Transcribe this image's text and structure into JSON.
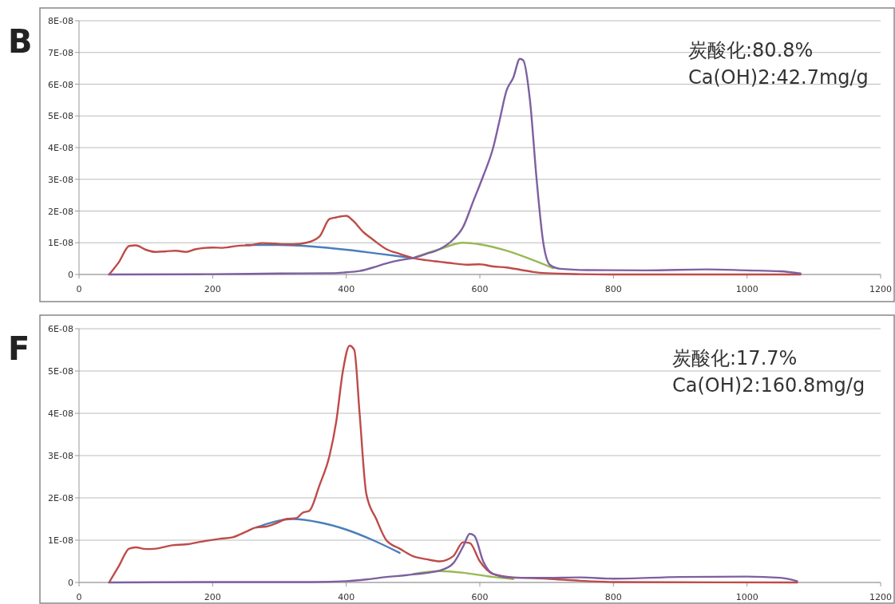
{
  "chart_data": [
    {
      "type": "line",
      "title": "B",
      "annotations": [
        "炭酸化:80.8%",
        "Ca(OH)2:42.7mg/g"
      ],
      "xlim": [
        0,
        1200
      ],
      "xticks": [
        0,
        200,
        400,
        600,
        800,
        1000,
        1200
      ],
      "ylim": [
        0,
        8e-08
      ],
      "yticks": [
        0,
        {
          "value": 1e-08,
          "label": "1E-08"
        },
        {
          "value": 2e-08,
          "label": "2E-08"
        },
        {
          "value": 3e-08,
          "label": "3E-08"
        },
        {
          "value": 4e-08,
          "label": "4E-08"
        },
        {
          "value": 5e-08,
          "label": "5E-08"
        },
        {
          "value": 6e-08,
          "label": "6E-08"
        },
        {
          "value": 7e-08,
          "label": "7E-08"
        },
        {
          "value": 8e-08,
          "label": "8E-08"
        }
      ],
      "grid": "y",
      "line_style": "solid",
      "marker": "none",
      "series": [
        {
          "color": "#4a7ebb",
          "x": [
            250,
            300,
            350,
            400,
            450,
            500
          ],
          "values": [
            9.3e-09,
            9.3e-09,
            8.8e-09,
            7.8e-09,
            6.5e-09,
            5.2e-09
          ]
        },
        {
          "color": "#98b954",
          "x": [
            500,
            540,
            575,
            600,
            640,
            680,
            710
          ],
          "values": [
            5.2e-09,
            8e-09,
            1e-08,
            9.5e-09,
            7.5e-09,
            4.5e-09,
            2e-09
          ]
        },
        {
          "color": "#be4b48",
          "x": [
            45,
            60,
            75,
            85,
            100,
            115,
            130,
            145,
            160,
            175,
            200,
            215,
            240,
            255,
            275,
            300,
            320,
            340,
            360,
            375,
            385,
            400,
            410,
            425,
            440,
            460,
            480,
            500,
            520,
            540,
            560,
            580,
            600,
            620,
            640,
            660,
            680,
            700,
            750,
            800,
            1080
          ],
          "values": [
            0,
            4e-09,
            9e-09,
            9.2e-09,
            7.8e-09,
            7.1e-09,
            7.3e-09,
            7.5e-09,
            7.1e-09,
            8e-09,
            8.5e-09,
            8.4e-09,
            9.1e-09,
            9.2e-09,
            9.9e-09,
            9.6e-09,
            9.5e-09,
            1e-08,
            1.2e-08,
            1.75e-08,
            1.8e-08,
            1.85e-08,
            1.7e-08,
            1.35e-08,
            1.1e-08,
            8e-09,
            6.5e-09,
            5.2e-09,
            4.5e-09,
            4e-09,
            3.5e-09,
            3.1e-09,
            3.2e-09,
            2.5e-09,
            2.2e-09,
            1.5e-09,
            8e-10,
            4e-10,
            1e-10,
            0,
            0
          ]
        },
        {
          "color": "#7d60a0",
          "x": [
            45,
            200,
            300,
            380,
            400,
            420,
            440,
            460,
            480,
            500,
            520,
            540,
            560,
            575,
            590,
            605,
            620,
            630,
            640,
            650,
            660,
            665,
            675,
            685,
            695,
            705,
            720,
            760,
            850,
            940,
            1000,
            1050,
            1080
          ],
          "values": [
            0,
            1e-10,
            3e-10,
            4e-10,
            7e-10,
            1.1e-09,
            2.2e-09,
            3.5e-09,
            4.5e-09,
            5.2e-09,
            6.5e-09,
            8e-09,
            1.1e-08,
            1.5e-08,
            2.3e-08,
            3.1e-08,
            4e-08,
            4.9e-08,
            5.8e-08,
            6.2e-08,
            6.8e-08,
            6.75e-08,
            5.5e-08,
            3e-08,
            1e-08,
            3e-09,
            1.8e-09,
            1.4e-09,
            1.3e-09,
            1.6e-09,
            1.3e-09,
            1e-09,
            3e-10
          ]
        }
      ]
    },
    {
      "type": "line",
      "title": "F",
      "annotations": [
        "炭酸化:17.7%",
        "Ca(OH)2:160.8mg/g"
      ],
      "xlim": [
        0,
        1200
      ],
      "xticks": [
        0,
        200,
        400,
        600,
        800,
        1000,
        1200
      ],
      "ylim": [
        0,
        6e-08
      ],
      "yticks": [
        0,
        {
          "value": 1e-08,
          "label": "1E-08"
        },
        {
          "value": 2e-08,
          "label": "2E-08"
        },
        {
          "value": 3e-08,
          "label": "3E-08"
        },
        {
          "value": 4e-08,
          "label": "4E-08"
        },
        {
          "value": 5e-08,
          "label": "5E-08"
        },
        {
          "value": 6e-08,
          "label": "6E-08"
        }
      ],
      "grid": "y",
      "line_style": "solid",
      "marker": "none",
      "series": [
        {
          "color": "#4a7ebb",
          "x": [
            265,
            320,
            360,
            400,
            440,
            480
          ],
          "values": [
            1.3e-08,
            1.5e-08,
            1.42e-08,
            1.25e-08,
            1e-08,
            7e-09
          ]
        },
        {
          "color": "#98b954",
          "x": [
            500,
            540,
            580,
            620,
            650
          ],
          "values": [
            2e-09,
            2.7e-09,
            2.2e-09,
            1.3e-09,
            8e-10
          ]
        },
        {
          "color": "#be4b48",
          "x": [
            45,
            60,
            75,
            85,
            100,
            115,
            140,
            160,
            185,
            210,
            230,
            250,
            265,
            280,
            295,
            310,
            325,
            335,
            345,
            360,
            375,
            385,
            395,
            405,
            412,
            420,
            430,
            445,
            460,
            480,
            500,
            520,
            540,
            560,
            575,
            585,
            600,
            620,
            650,
            700,
            750,
            800,
            1075
          ],
          "values": [
            0,
            4e-09,
            8e-09,
            8.3e-09,
            7.9e-09,
            8e-09,
            8.8e-09,
            9e-09,
            9.7e-09,
            1.03e-08,
            1.07e-08,
            1.2e-08,
            1.3e-08,
            1.32e-08,
            1.4e-08,
            1.5e-08,
            1.52e-08,
            1.65e-08,
            1.7e-08,
            2.3e-08,
            3e-08,
            3.8e-08,
            5e-08,
            5.6e-08,
            5.5e-08,
            4e-08,
            2.1e-08,
            1.5e-08,
            1e-08,
            8e-09,
            6.2e-09,
            5.5e-09,
            5e-09,
            6.2e-09,
            9.5e-09,
            9.3e-09,
            5e-09,
            2e-09,
            1.2e-09,
            9e-10,
            4e-10,
            1e-10,
            0
          ]
        },
        {
          "color": "#7d60a0",
          "x": [
            45,
            200,
            350,
            400,
            430,
            450,
            500,
            540,
            560,
            575,
            585,
            592,
            605,
            620,
            650,
            700,
            750,
            800,
            900,
            1000,
            1050,
            1075
          ],
          "values": [
            0,
            1e-10,
            1e-10,
            3e-10,
            7e-10,
            1.1e-09,
            1.9e-09,
            2.8e-09,
            4.5e-09,
            8.5e-09,
            1.15e-08,
            1.1e-08,
            5e-09,
            2e-09,
            1.1e-09,
            1.1e-09,
            1.2e-09,
            9e-10,
            1.3e-09,
            1.4e-09,
            1.1e-09,
            3e-10
          ]
        }
      ]
    }
  ]
}
